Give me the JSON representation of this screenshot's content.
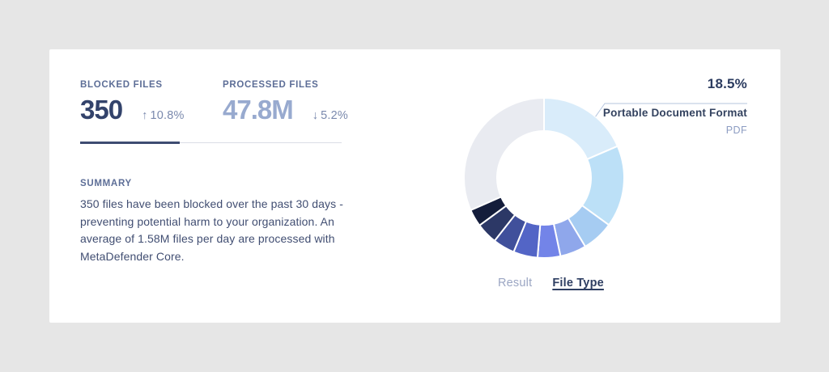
{
  "card": {
    "stats": [
      {
        "label": "BLOCKED FILES",
        "value": "350",
        "arrow": "↑",
        "delta": "10.8%",
        "trend": "up"
      },
      {
        "label": "PROCESSED FILES",
        "value": "47.8M",
        "arrow": "↓",
        "delta": "5.2%",
        "trend": "down"
      }
    ],
    "progress": {
      "fill_ratio": 0.38
    },
    "summary": {
      "label": "SUMMARY",
      "text": "350 files have been blocked over the past 30 days - preventing potential harm to your organization. An average of 1.58M files per day are processed with MetaDefender Core."
    }
  },
  "chart_data": {
    "type": "pie",
    "subtype": "donut",
    "unit": "percent",
    "legend_position": "none",
    "start_angle_deg": 0,
    "direction": "clockwise",
    "segments": [
      {
        "percent": 18.5,
        "color": "#D9ECFA",
        "label": "Portable Document Format",
        "abbr": "PDF"
      },
      {
        "percent": 16.5,
        "color": "#BCE0F7"
      },
      {
        "percent": 6.4,
        "color": "#A6CCF2"
      },
      {
        "percent": 5.3,
        "color": "#8FA7EB"
      },
      {
        "percent": 4.6,
        "color": "#7384E8"
      },
      {
        "percent": 4.9,
        "color": "#5365C6"
      },
      {
        "percent": 4.4,
        "color": "#40509B"
      },
      {
        "percent": 4.3,
        "color": "#2C3866"
      },
      {
        "percent": 3.5,
        "color": "#141D3B"
      },
      {
        "percent": 31.6,
        "color": "#E9EBF1"
      }
    ],
    "callout": {
      "percent_label": "18.5%",
      "name": "Portable Document Format",
      "abbr": "PDF",
      "line_color": "#B6C6DE"
    },
    "tabs": [
      {
        "label": "Result",
        "active": false
      },
      {
        "label": "File Type",
        "active": true
      }
    ]
  },
  "colors": {
    "page_background": "#E6E6E6",
    "card_background": "#FFFFFF",
    "label": "#5D6E97",
    "value_dark": "#33436B",
    "value_light": "#98AACF",
    "delta": "#7A89AD",
    "progress_fill": "#3E4C71",
    "tab_active": "#2E3E62",
    "tab_inactive": "#9BA6C3"
  }
}
